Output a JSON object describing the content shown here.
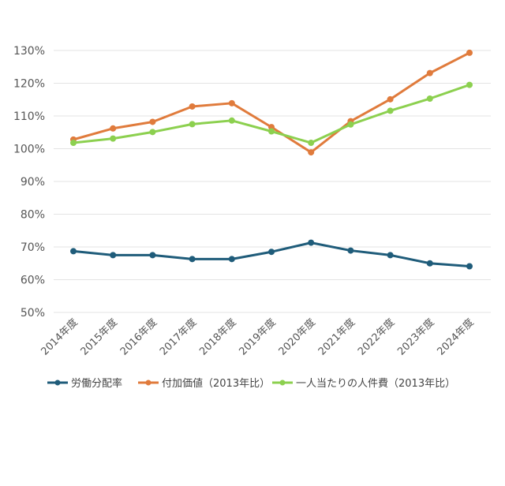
{
  "chart_data": {
    "type": "line",
    "title": "",
    "xlabel": "",
    "ylabel": "",
    "ylim": [
      50,
      130
    ],
    "yticks": [
      "50%",
      "60%",
      "70%",
      "80%",
      "90%",
      "100%",
      "110%",
      "120%",
      "130%"
    ],
    "ytick_values": [
      50,
      60,
      70,
      80,
      90,
      100,
      110,
      120,
      130
    ],
    "grid": true,
    "legend_position": "bottom",
    "categories": [
      "2014年度",
      "2015年度",
      "2016年度",
      "2017年度",
      "2018年度",
      "2019年度",
      "2020年度",
      "2021年度",
      "2022年度",
      "2023年度",
      "2024年度"
    ],
    "series": [
      {
        "name": "労働分配率",
        "color": "#1f5c7a",
        "values": [
          68.7,
          67.5,
          67.5,
          66.3,
          66.3,
          68.5,
          71.3,
          68.9,
          67.5,
          65.0,
          64.1
        ]
      },
      {
        "name": "付加価値（2013年比）",
        "color": "#e07b3c",
        "values": [
          102.8,
          106.2,
          108.2,
          112.9,
          113.9,
          106.6,
          98.9,
          108.4,
          115.1,
          123.1,
          129.3
        ]
      },
      {
        "name": "一人当たりの人件費（2013年比）",
        "color": "#8cd04f",
        "values": [
          101.8,
          103.1,
          105.1,
          107.5,
          108.6,
          105.3,
          101.8,
          107.4,
          111.6,
          115.3,
          119.5
        ]
      }
    ]
  }
}
